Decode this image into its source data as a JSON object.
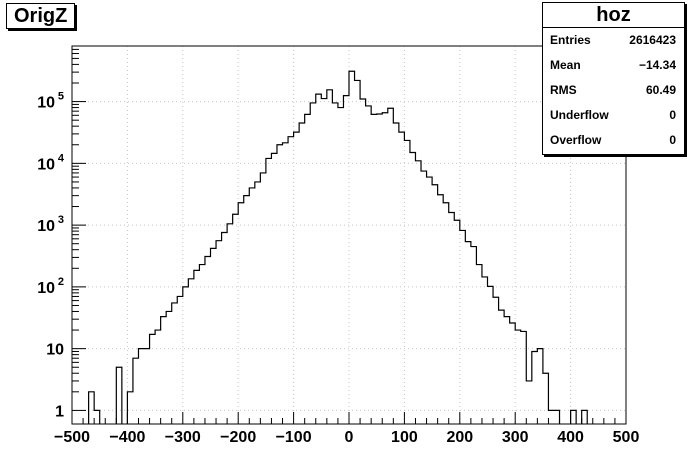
{
  "chart_data": {
    "type": "bar",
    "title": "OrigZ",
    "xlabel": "",
    "ylabel": "",
    "xlim": [
      -500,
      500
    ],
    "ylog": true,
    "ylim_log10": [
      -0.22,
      5.9
    ],
    "grid": true,
    "bin_width": 10,
    "x_ticks": [
      "−500",
      "−400",
      "−300",
      "−200",
      "−100",
      "0",
      "100",
      "200",
      "300",
      "400",
      "500"
    ],
    "y_ticks": [
      {
        "label": "1",
        "value": 1
      },
      {
        "label": "10",
        "value": 10
      },
      {
        "label": "10",
        "sup": "2",
        "value": 100
      },
      {
        "label": "10",
        "sup": "3",
        "value": 1000
      },
      {
        "label": "10",
        "sup": "4",
        "value": 10000
      },
      {
        "label": "10",
        "sup": "5",
        "value": 100000
      }
    ],
    "bins": [
      [
        -470,
        2
      ],
      [
        -460,
        1
      ],
      [
        -420,
        5
      ],
      [
        -400,
        2
      ],
      [
        -390,
        7
      ],
      [
        -380,
        10
      ],
      [
        -370,
        10
      ],
      [
        -360,
        17
      ],
      [
        -350,
        20
      ],
      [
        -340,
        33
      ],
      [
        -330,
        40
      ],
      [
        -320,
        55
      ],
      [
        -310,
        70
      ],
      [
        -300,
        100
      ],
      [
        -290,
        135
      ],
      [
        -280,
        185
      ],
      [
        -270,
        230
      ],
      [
        -260,
        310
      ],
      [
        -250,
        420
      ],
      [
        -240,
        560
      ],
      [
        -230,
        760
      ],
      [
        -220,
        1050
      ],
      [
        -210,
        1500
      ],
      [
        -200,
        2300
      ],
      [
        -190,
        3000
      ],
      [
        -180,
        4000
      ],
      [
        -170,
        5000
      ],
      [
        -160,
        7000
      ],
      [
        -150,
        12000
      ],
      [
        -140,
        14500
      ],
      [
        -130,
        20000
      ],
      [
        -120,
        21500
      ],
      [
        -110,
        27000
      ],
      [
        -100,
        32000
      ],
      [
        -90,
        45000
      ],
      [
        -80,
        62000
      ],
      [
        -70,
        95000
      ],
      [
        -60,
        132000
      ],
      [
        -50,
        112000
      ],
      [
        -40,
        155000
      ],
      [
        -30,
        95000
      ],
      [
        -20,
        80000
      ],
      [
        -10,
        125000
      ],
      [
        0,
        310000
      ],
      [
        10,
        220000
      ],
      [
        20,
        110000
      ],
      [
        30,
        85000
      ],
      [
        40,
        62000
      ],
      [
        50,
        63000
      ],
      [
        60,
        66000
      ],
      [
        70,
        78000
      ],
      [
        80,
        45000
      ],
      [
        90,
        32000
      ],
      [
        100,
        23500
      ],
      [
        110,
        15000
      ],
      [
        120,
        11000
      ],
      [
        130,
        7500
      ],
      [
        140,
        6000
      ],
      [
        150,
        4500
      ],
      [
        160,
        3100
      ],
      [
        170,
        2300
      ],
      [
        180,
        1600
      ],
      [
        190,
        1200
      ],
      [
        200,
        820
      ],
      [
        210,
        540
      ],
      [
        220,
        450
      ],
      [
        230,
        230
      ],
      [
        240,
        145
      ],
      [
        250,
        102
      ],
      [
        260,
        68
      ],
      [
        270,
        42
      ],
      [
        280,
        33
      ],
      [
        290,
        26
      ],
      [
        300,
        20
      ],
      [
        310,
        19
      ],
      [
        320,
        3
      ],
      [
        330,
        9
      ],
      [
        340,
        10
      ],
      [
        350,
        4
      ],
      [
        360,
        1
      ],
      [
        370,
        1
      ],
      [
        400,
        1
      ],
      [
        420,
        1
      ]
    ]
  },
  "title": "OrigZ",
  "stats": {
    "name": "hoz",
    "rows": [
      {
        "label": "Entries",
        "value": "2616423"
      },
      {
        "label": "Mean",
        "value": "−14.34"
      },
      {
        "label": "RMS",
        "value": "60.49"
      },
      {
        "label": "Underflow",
        "value": "0"
      },
      {
        "label": "Overflow",
        "value": "0"
      }
    ]
  }
}
